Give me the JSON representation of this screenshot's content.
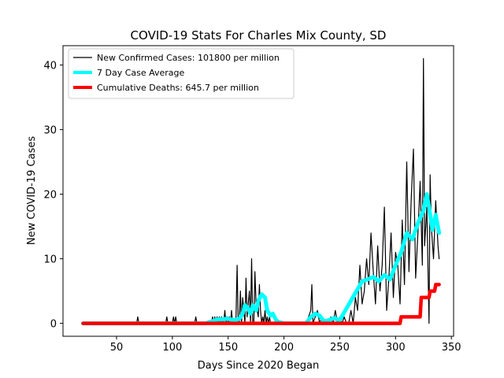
{
  "chart_data": {
    "type": "line",
    "title": "COVID-19 Stats For Charles Mix County, SD",
    "xlabel": "Days Since 2020 Began",
    "ylabel": "New COVID-19 Cases",
    "xlim": [
      2,
      352
    ],
    "ylim": [
      -2,
      43
    ],
    "xticks": [
      50,
      100,
      150,
      200,
      250,
      300,
      350
    ],
    "yticks": [
      0,
      10,
      20,
      30,
      40
    ],
    "grid": false,
    "legend_position": "top-left",
    "series": [
      {
        "name": "New Confirmed Cases: 101800 per million",
        "color": "#000000",
        "x": [
          20,
          30,
          40,
          50,
          60,
          68,
          69,
          70,
          80,
          94,
          95,
          96,
          100,
          101,
          102,
          103,
          104,
          105,
          120,
          121,
          122,
          135,
          136,
          137,
          138,
          139,
          140,
          141,
          142,
          143,
          144,
          145,
          146,
          147,
          148,
          149,
          150,
          151,
          152,
          153,
          154,
          155,
          156,
          157,
          158,
          159,
          160,
          161,
          162,
          163,
          164,
          165,
          166,
          167,
          168,
          169,
          170,
          171,
          172,
          173,
          174,
          175,
          176,
          177,
          178,
          179,
          180,
          181,
          182,
          183,
          184,
          185,
          186,
          187,
          188,
          189,
          190,
          191,
          192,
          193,
          194,
          195,
          200,
          210,
          220,
          222,
          224,
          225,
          226,
          228,
          230,
          232,
          234,
          236,
          240,
          242,
          244,
          246,
          248,
          250,
          252,
          254,
          256,
          258,
          260,
          262,
          264,
          266,
          268,
          270,
          272,
          274,
          276,
          278,
          280,
          282,
          284,
          286,
          288,
          290,
          292,
          294,
          296,
          298,
          300,
          302,
          304,
          306,
          308,
          310,
          312,
          314,
          316,
          318,
          320,
          322,
          324,
          325,
          326,
          328,
          330,
          331,
          332,
          334,
          336,
          338,
          339
        ],
        "y": [
          0,
          0,
          0,
          0,
          0,
          0,
          1,
          0,
          0,
          0,
          1,
          0,
          0,
          1,
          0,
          1,
          0,
          0,
          0,
          1,
          0,
          0,
          1,
          0,
          1,
          0,
          1,
          0,
          1,
          0,
          1,
          0,
          0,
          2,
          0,
          1,
          0,
          1,
          0,
          2,
          0,
          0,
          0,
          1,
          9,
          0,
          0,
          5,
          0,
          4,
          2,
          0,
          7,
          1,
          3,
          5,
          0,
          10,
          0,
          0,
          8,
          3,
          2,
          1,
          6,
          2,
          0,
          1,
          0,
          2,
          0,
          1,
          0,
          1,
          0,
          0,
          0,
          0,
          0,
          0,
          0,
          0,
          0,
          0,
          0,
          1,
          2,
          6,
          0,
          1,
          2,
          0,
          1,
          0,
          0,
          1,
          0,
          2,
          0,
          1,
          0,
          1,
          0,
          0,
          2,
          0,
          4,
          2,
          9,
          3,
          5,
          10,
          6,
          14,
          8,
          3,
          12,
          5,
          9,
          18,
          2,
          7,
          14,
          4,
          11,
          9,
          3,
          16,
          6,
          25,
          8,
          19,
          27,
          7,
          14,
          22,
          9,
          41,
          12,
          18,
          0,
          23,
          15,
          10,
          19,
          12,
          10
        ]
      },
      {
        "name": "7 Day Case Average",
        "color": "#00ffff",
        "x": [
          20,
          100,
          130,
          140,
          150,
          155,
          160,
          163,
          165,
          167,
          170,
          172,
          175,
          177,
          180,
          183,
          185,
          188,
          190,
          193,
          195,
          200,
          210,
          220,
          224,
          228,
          232,
          236,
          240,
          245,
          250,
          255,
          260,
          265,
          270,
          275,
          280,
          285,
          290,
          295,
          300,
          305,
          310,
          315,
          320,
          325,
          328,
          330,
          333,
          336,
          339
        ],
        "y": [
          0,
          0,
          0,
          0.6,
          0.7,
          0.5,
          0.7,
          1.5,
          2.8,
          2.5,
          1.5,
          2.8,
          2.0,
          3.5,
          4.5,
          4.0,
          2.0,
          1.2,
          1.5,
          0.5,
          0.2,
          0,
          0,
          0,
          1.0,
          1.5,
          1.2,
          0.3,
          0.5,
          0.8,
          0.5,
          2.0,
          3.5,
          5.0,
          6.5,
          6.8,
          7.2,
          6.5,
          7.5,
          6.8,
          9.0,
          11.0,
          14.0,
          13.0,
          15.5,
          17.5,
          20.0,
          18.0,
          14.5,
          16.8,
          14.0
        ]
      },
      {
        "name": "Cumulative Deaths: 645.7 per million",
        "color": "#ff0000",
        "x": [
          20,
          304,
          305,
          322,
          323,
          326,
          327,
          330,
          331,
          335,
          336,
          339
        ],
        "y": [
          0,
          0,
          1,
          1,
          4,
          4,
          4,
          4,
          5,
          5,
          6,
          6
        ]
      }
    ]
  }
}
